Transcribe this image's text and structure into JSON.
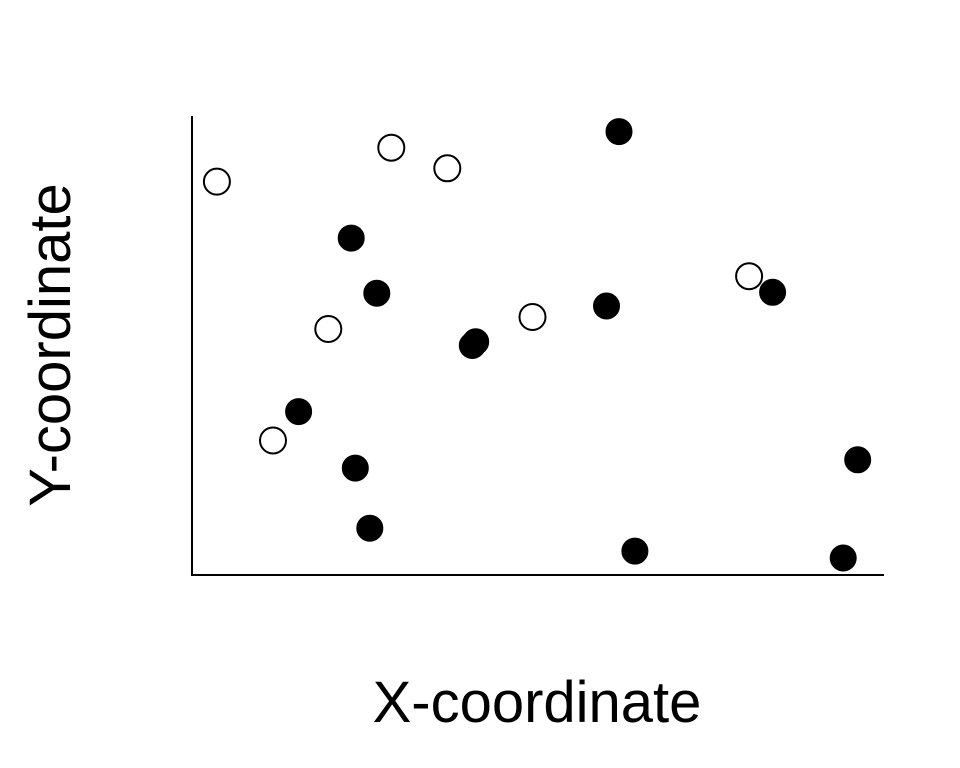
{
  "chart_data": {
    "type": "scatter",
    "title": "",
    "xlabel": "X-coordinate",
    "ylabel": "Y-coordinate",
    "xlim": [
      0,
      1
    ],
    "ylim": [
      0,
      1
    ],
    "grid": false,
    "legend": "none",
    "series": [
      {
        "marker": "filled-circle",
        "color": "#000000",
        "points": [
          {
            "x": 0.617,
            "y": 0.966
          },
          {
            "x": 0.23,
            "y": 0.734
          },
          {
            "x": 0.267,
            "y": 0.614
          },
          {
            "x": 0.41,
            "y": 0.508
          },
          {
            "x": 0.405,
            "y": 0.5
          },
          {
            "x": 0.599,
            "y": 0.586
          },
          {
            "x": 0.839,
            "y": 0.616
          },
          {
            "x": 0.154,
            "y": 0.356
          },
          {
            "x": 0.236,
            "y": 0.233
          },
          {
            "x": 0.257,
            "y": 0.102
          },
          {
            "x": 0.64,
            "y": 0.052
          },
          {
            "x": 0.962,
            "y": 0.251
          },
          {
            "x": 0.941,
            "y": 0.037
          }
        ]
      },
      {
        "marker": "open-circle",
        "color": "#000000",
        "points": [
          {
            "x": 0.036,
            "y": 0.857
          },
          {
            "x": 0.288,
            "y": 0.931
          },
          {
            "x": 0.369,
            "y": 0.886
          },
          {
            "x": 0.197,
            "y": 0.536
          },
          {
            "x": 0.492,
            "y": 0.562
          },
          {
            "x": 0.805,
            "y": 0.651
          },
          {
            "x": 0.117,
            "y": 0.293
          }
        ]
      }
    ]
  }
}
